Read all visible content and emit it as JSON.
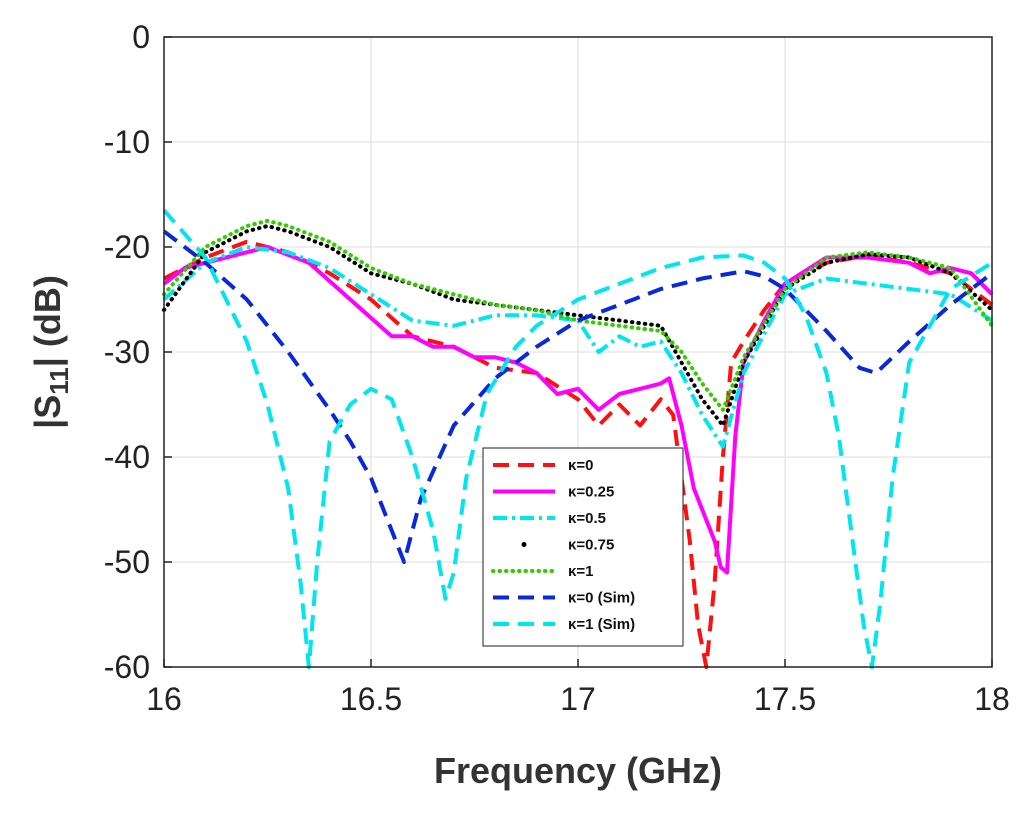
{
  "chart_data": {
    "type": "line",
    "title": "",
    "xlabel": "Frequency (GHz)",
    "ylabel_main": "|S",
    "ylabel_sub": "11",
    "ylabel_tail": "| (dB)",
    "xlim": [
      16,
      18
    ],
    "ylim": [
      -60,
      0
    ],
    "xticks": [
      16,
      16.5,
      17,
      17.5,
      18
    ],
    "xtick_labels": [
      "16",
      "16.5",
      "17",
      "17.5",
      "18"
    ],
    "yticks": [
      0,
      -10,
      -20,
      -30,
      -40,
      -50,
      -60
    ],
    "ytick_labels": [
      "0",
      "-10",
      "-20",
      "-30",
      "-40",
      "-50",
      "-60"
    ],
    "grid": true,
    "legend_position": "bottom-center",
    "series": [
      {
        "name": "κ=0",
        "color": "#ff1010",
        "style": "dashed",
        "x": [
          16.0,
          16.1,
          16.2,
          16.3,
          16.4,
          16.5,
          16.6,
          16.7,
          16.8,
          16.9,
          17.0,
          17.05,
          17.1,
          17.15,
          17.2,
          17.23,
          17.25,
          17.27,
          17.29,
          17.31,
          17.33,
          17.35,
          17.37,
          17.4,
          17.45,
          17.5,
          17.6,
          17.7,
          17.8,
          17.9,
          18.0
        ],
        "y": [
          -23,
          -21,
          -19.5,
          -20.5,
          -22.5,
          -25,
          -28.5,
          -29.5,
          -31.5,
          -32,
          -34.5,
          -37,
          -35,
          -37,
          -34.5,
          -36,
          -42,
          -48,
          -56,
          -60,
          -52,
          -40,
          -31,
          -29,
          -26,
          -23.5,
          -21.5,
          -20.8,
          -21.5,
          -22.5,
          -25.5
        ]
      },
      {
        "name": "κ=0.25",
        "color": "#ff00ff",
        "style": "solid",
        "x": [
          16.0,
          16.05,
          16.15,
          16.25,
          16.35,
          16.45,
          16.55,
          16.6,
          16.65,
          16.7,
          16.75,
          16.8,
          16.85,
          16.9,
          16.95,
          17.0,
          17.05,
          17.1,
          17.15,
          17.2,
          17.22,
          17.25,
          17.28,
          17.31,
          17.33,
          17.345,
          17.36,
          17.38,
          17.4,
          17.45,
          17.5,
          17.6,
          17.7,
          17.8,
          17.85,
          17.9,
          17.95,
          18.0
        ],
        "y": [
          -23.5,
          -22,
          -21,
          -20,
          -21.5,
          -25,
          -28.5,
          -28.5,
          -29.5,
          -29.5,
          -30.5,
          -30.5,
          -31,
          -32,
          -34,
          -33.5,
          -35.5,
          -34,
          -33.5,
          -33,
          -32.5,
          -37,
          -43,
          -46,
          -48,
          -50.5,
          -51,
          -38,
          -31,
          -27,
          -23.5,
          -21,
          -21,
          -21.5,
          -22.5,
          -22,
          -22.5,
          -24.5
        ]
      },
      {
        "name": "κ=0.5",
        "color": "#00e5ee",
        "style": "dashdot",
        "x": [
          16.0,
          16.1,
          16.2,
          16.3,
          16.4,
          16.5,
          16.6,
          16.7,
          16.8,
          16.9,
          17.0,
          17.05,
          17.1,
          17.15,
          17.2,
          17.25,
          17.3,
          17.35,
          17.4,
          17.5,
          17.6,
          17.7,
          17.8,
          17.9,
          18.0
        ],
        "y": [
          -25,
          -21.5,
          -20,
          -20.5,
          -22,
          -24.5,
          -27,
          -27.5,
          -26.5,
          -26.5,
          -27,
          -30,
          -28.5,
          -29.5,
          -29,
          -32,
          -36,
          -39,
          -32,
          -24.5,
          -23,
          -23.5,
          -24,
          -24.5,
          -27
        ]
      },
      {
        "name": "κ=0.75",
        "color": "#000000",
        "style": "dotted",
        "x": [
          16.0,
          16.1,
          16.2,
          16.25,
          16.3,
          16.4,
          16.5,
          16.6,
          16.7,
          16.8,
          16.9,
          17.0,
          17.1,
          17.2,
          17.25,
          17.3,
          17.35,
          17.4,
          17.5,
          17.6,
          17.7,
          17.8,
          17.9,
          18.0
        ],
        "y": [
          -26,
          -20.5,
          -18.5,
          -18,
          -18.5,
          -20,
          -22.5,
          -23.5,
          -25,
          -25.5,
          -26,
          -26.5,
          -27,
          -27.5,
          -31,
          -34.5,
          -37,
          -31,
          -24,
          -21.5,
          -20.7,
          -21,
          -22.5,
          -26
        ]
      },
      {
        "name": "κ=1",
        "color": "#33cc00",
        "style": "dotted",
        "x": [
          16.0,
          16.1,
          16.2,
          16.25,
          16.3,
          16.4,
          16.5,
          16.6,
          16.7,
          16.8,
          16.9,
          17.0,
          17.1,
          17.2,
          17.25,
          17.3,
          17.35,
          17.4,
          17.5,
          17.6,
          17.7,
          17.8,
          17.9,
          18.0
        ],
        "y": [
          -24.5,
          -20,
          -18,
          -17.5,
          -18,
          -19.5,
          -22,
          -23.5,
          -24.5,
          -25.5,
          -26,
          -27,
          -27.5,
          -28,
          -30,
          -33,
          -35.5,
          -30.5,
          -24,
          -21,
          -20.5,
          -21,
          -22,
          -27.5
        ]
      },
      {
        "name": "κ=0 (Sim)",
        "color": "#0a28d8",
        "style": "dashed",
        "x": [
          16.0,
          16.1,
          16.2,
          16.3,
          16.4,
          16.45,
          16.5,
          16.55,
          16.58,
          16.62,
          16.7,
          16.8,
          16.9,
          17.0,
          17.1,
          17.2,
          17.3,
          17.4,
          17.45,
          17.5,
          17.6,
          17.68,
          17.72,
          17.8,
          17.9,
          18.0
        ],
        "y": [
          -18.5,
          -21.5,
          -25,
          -30,
          -35.5,
          -38.5,
          -42,
          -47,
          -50,
          -44,
          -37,
          -32.5,
          -29.5,
          -27,
          -25.5,
          -24,
          -23,
          -22.3,
          -22.8,
          -24,
          -28,
          -31.5,
          -32,
          -29,
          -25.5,
          -22.5
        ]
      },
      {
        "name": "κ=1 (Sim)",
        "color": "#00e5ee",
        "style": "dashed",
        "x": [
          16.0,
          16.1,
          16.2,
          16.25,
          16.3,
          16.33,
          16.35,
          16.37,
          16.4,
          16.45,
          16.5,
          16.55,
          16.6,
          16.65,
          16.68,
          16.7,
          16.73,
          16.78,
          16.85,
          16.9,
          17.0,
          17.1,
          17.2,
          17.3,
          17.4,
          17.45,
          17.5,
          17.55,
          17.6,
          17.63,
          17.66,
          17.69,
          17.71,
          17.73,
          17.76,
          17.8,
          17.9,
          18.0
        ],
        "y": [
          -16.5,
          -21,
          -29,
          -35,
          -43,
          -52,
          -60,
          -50,
          -38.5,
          -35,
          -33.5,
          -34.5,
          -40,
          -47,
          -53.5,
          -51,
          -42,
          -34,
          -29.5,
          -27.5,
          -25,
          -23.5,
          -22,
          -21,
          -20.8,
          -21.5,
          -23,
          -26.5,
          -32,
          -38,
          -47,
          -56,
          -60,
          -54,
          -42,
          -31,
          -24,
          -21.5
        ]
      }
    ]
  }
}
